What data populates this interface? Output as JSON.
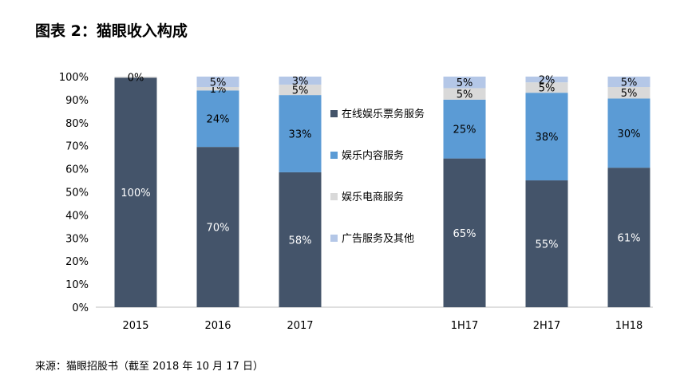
{
  "page": {
    "title": "图表 2：猫眼收入构成",
    "source": "来源：猫眼招股书（截至 2018 年 10 月 17 日）"
  },
  "chart_data": {
    "type": "bar",
    "stacked": true,
    "categories": [
      "2015",
      "2016",
      "2017",
      "1H17",
      "2H17",
      "1H18"
    ],
    "series": [
      {
        "name": "在线娱乐票务服务",
        "color": "#44546a",
        "values": [
          99.5,
          69.5,
          58.5,
          64.5,
          55,
          60.5
        ],
        "labels": [
          "100%",
          "70%",
          "58%",
          "65%",
          "55%",
          "61%"
        ]
      },
      {
        "name": "娱乐内容服务",
        "color": "#5b9bd5",
        "values": [
          0,
          24.5,
          33.5,
          25.5,
          38,
          30
        ],
        "labels": [
          "",
          "24%",
          "33%",
          "25%",
          "38%",
          "30%"
        ]
      },
      {
        "name": "娱乐电商服务",
        "color": "#d9d9d9",
        "values": [
          0.5,
          1.5,
          4.5,
          5,
          4.5,
          5
        ],
        "labels": [
          "0%",
          "1%",
          "5%",
          "5%",
          "5%",
          "5%"
        ]
      },
      {
        "name": "广告服务及其他",
        "color": "#b4c7e7",
        "values": [
          0,
          4.5,
          3.5,
          5,
          2.5,
          4.5
        ],
        "labels": [
          "",
          "5%",
          "3%",
          "5%",
          "2%",
          "5%"
        ]
      }
    ],
    "yticks": [
      "0%",
      "10%",
      "20%",
      "30%",
      "40%",
      "50%",
      "60%",
      "70%",
      "80%",
      "90%",
      "100%"
    ],
    "ylim": [
      0,
      100
    ],
    "legend": "right of 2017",
    "grid": false
  }
}
